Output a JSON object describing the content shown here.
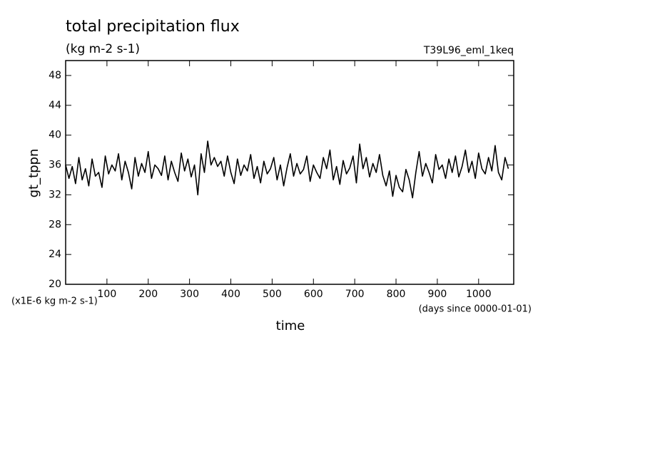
{
  "chart_data": {
    "type": "line",
    "title": "total precipitation flux",
    "subtitle": "(kg m-2 s-1)",
    "annotation": "T39L96_eml_1keq",
    "y_label": "gt_tppn",
    "x_label": "time",
    "y_unit_label": "(x1E-6 kg m-2 s-1)",
    "x_unit_label": "(days since 0000-01-01)",
    "xlim": [
      0,
      1085
    ],
    "ylim": [
      20,
      50
    ],
    "xticks": [
      100,
      200,
      300,
      400,
      500,
      600,
      700,
      800,
      900,
      1000
    ],
    "yticks": [
      20,
      24,
      28,
      32,
      36,
      40,
      44,
      48
    ],
    "x": [
      0,
      8,
      16,
      24,
      32,
      40,
      48,
      56,
      64,
      72,
      80,
      88,
      96,
      104,
      112,
      120,
      128,
      136,
      144,
      152,
      160,
      168,
      176,
      184,
      192,
      200,
      208,
      216,
      224,
      232,
      240,
      248,
      256,
      264,
      272,
      280,
      288,
      296,
      304,
      312,
      320,
      328,
      336,
      344,
      352,
      360,
      368,
      376,
      384,
      392,
      400,
      408,
      416,
      424,
      432,
      440,
      448,
      456,
      464,
      472,
      480,
      488,
      496,
      504,
      512,
      520,
      528,
      536,
      544,
      552,
      560,
      568,
      576,
      584,
      592,
      600,
      608,
      616,
      624,
      632,
      640,
      648,
      656,
      664,
      672,
      680,
      688,
      696,
      704,
      712,
      720,
      728,
      736,
      744,
      752,
      760,
      768,
      776,
      784,
      792,
      800,
      808,
      816,
      824,
      832,
      840,
      848,
      856,
      864,
      872,
      880,
      888,
      896,
      904,
      912,
      920,
      928,
      936,
      944,
      952,
      960,
      968,
      976,
      984,
      992,
      1000,
      1008,
      1016,
      1024,
      1032,
      1040,
      1048,
      1056,
      1064,
      1072
    ],
    "series": [
      {
        "color": "#000000",
        "values": [
          36,
          34.2,
          35.8,
          33.5,
          37,
          34,
          35.5,
          33.2,
          36.8,
          34.5,
          35,
          33,
          37.2,
          34.8,
          36,
          35.2,
          37.5,
          34,
          36.5,
          35,
          32.8,
          37,
          34.5,
          36.2,
          35,
          37.8,
          34.2,
          36,
          35.5,
          34.6,
          37.2,
          34,
          36.5,
          35,
          33.8,
          37.6,
          35.2,
          36.8,
          34.4,
          36,
          32,
          37.5,
          35,
          39.2,
          36,
          37,
          35.8,
          36.5,
          34.5,
          37.2,
          35,
          33.5,
          36.8,
          34.6,
          36,
          35.2,
          37.4,
          34.2,
          35.8,
          33.6,
          36.5,
          34.8,
          35.5,
          37,
          34,
          36,
          33.2,
          35.6,
          37.5,
          34.5,
          36.2,
          34.8,
          35.4,
          37.2,
          33.8,
          36,
          35,
          34.2,
          37,
          35.5,
          38,
          34,
          35.8,
          33.4,
          36.6,
          34.8,
          35.6,
          37.2,
          33.6,
          38.8,
          35.5,
          37,
          34.4,
          36.2,
          35,
          37.4,
          34.6,
          33.2,
          35.2,
          31.8,
          34.6,
          33,
          32.4,
          35.4,
          34,
          31.6,
          35,
          37.8,
          34.5,
          36.2,
          35,
          33.6,
          37.4,
          35.4,
          36,
          34.2,
          36.8,
          35,
          37.2,
          34.4,
          35.8,
          38,
          35,
          36.5,
          34.2,
          37.6,
          35.5,
          34.8,
          37,
          35.2,
          38.6,
          35,
          34,
          37,
          35.5
        ]
      }
    ]
  }
}
